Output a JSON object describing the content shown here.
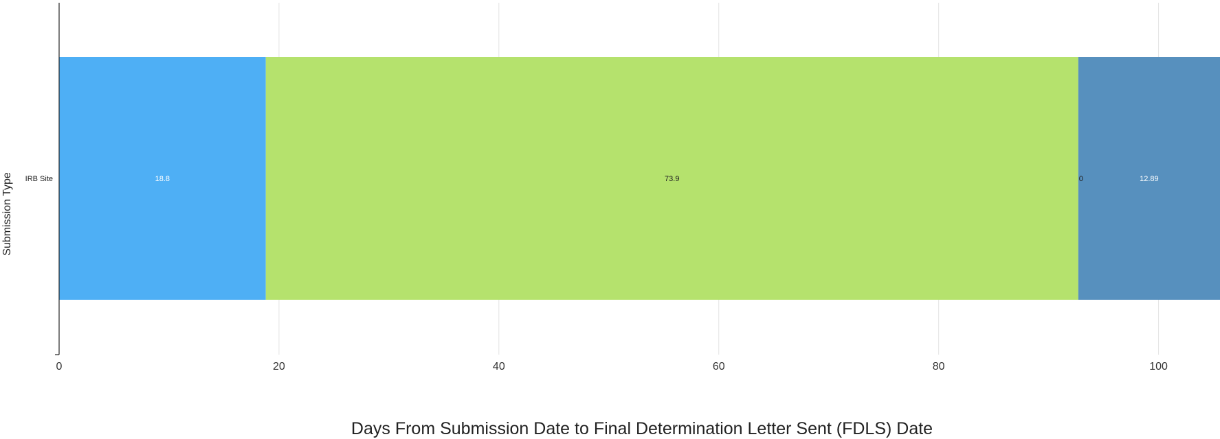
{
  "chart_data": {
    "type": "bar",
    "orientation": "horizontal",
    "stacked": true,
    "categories": [
      "IRB Site"
    ],
    "series": [
      {
        "values": [
          18.8
        ],
        "color": "#4eaff5",
        "label_color": "#ffffff",
        "label": "18.8"
      },
      {
        "values": [
          73.9
        ],
        "color": "#b5e26d",
        "label_color": "#222222",
        "label": "73.9"
      },
      {
        "values": [
          0
        ],
        "color": "#5790be",
        "label_color": "#222222",
        "label": "0"
      },
      {
        "values": [
          12.89
        ],
        "color": "#5790be",
        "label_color": "#ffffff",
        "label": "12.89"
      }
    ],
    "xlabel": "Days From Submission Date to Final Determination Letter Sent (FDLS) Date",
    "ylabel": "Submission Type",
    "xlim": [
      0,
      105.59
    ],
    "xticks": [
      0,
      20,
      40,
      60,
      80,
      100
    ],
    "grid": true,
    "legend": "none"
  }
}
